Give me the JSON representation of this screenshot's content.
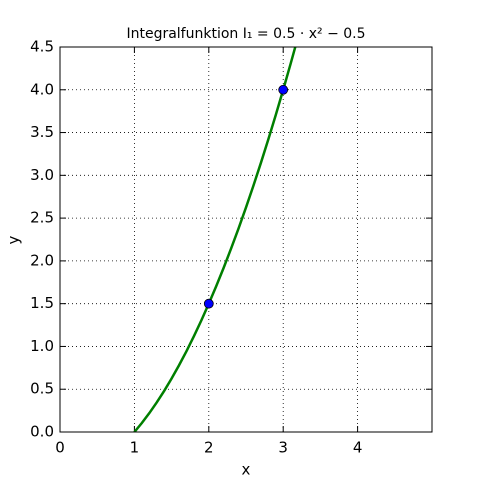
{
  "chart_data": {
    "type": "line",
    "title": "Integralfunktion I₁ = 0.5 · x² − 0.5",
    "x_label": "x",
    "y_label": "y",
    "xlim": [
      0,
      5
    ],
    "xticks": [
      0,
      1,
      2,
      3,
      4
    ],
    "ylim": [
      0,
      4.5
    ],
    "yticks": [
      {
        "value": 0,
        "label": "0.0"
      },
      0.5,
      {
        "value": 1,
        "label": "1.0"
      },
      1.5,
      {
        "value": 2,
        "label": "2.0"
      },
      2.5,
      {
        "value": 3,
        "label": "3.0"
      },
      3.5,
      {
        "value": 4,
        "label": "4.0"
      },
      4.5
    ],
    "grid": true,
    "series": [
      {
        "color": "#007f00",
        "x": [
          1,
          1.1,
          1.2,
          1.3,
          1.4,
          1.5,
          1.6,
          1.7,
          1.8,
          1.9,
          2,
          2.1,
          2.2,
          2.3,
          2.4,
          2.5,
          2.6,
          2.7,
          2.8,
          2.9,
          3,
          3.1,
          3.162
        ],
        "values": [
          0,
          0.105,
          0.22,
          0.345,
          0.48,
          0.625,
          0.78,
          0.945,
          1.12,
          1.305,
          1.5,
          1.705,
          1.92,
          2.145,
          2.38,
          2.625,
          2.88,
          3.145,
          3.42,
          3.705,
          4,
          4.305,
          4.499
        ]
      }
    ],
    "markers": {
      "color": "#0000ff",
      "x": [
        2,
        3
      ],
      "values": [
        1.5,
        4
      ]
    }
  }
}
